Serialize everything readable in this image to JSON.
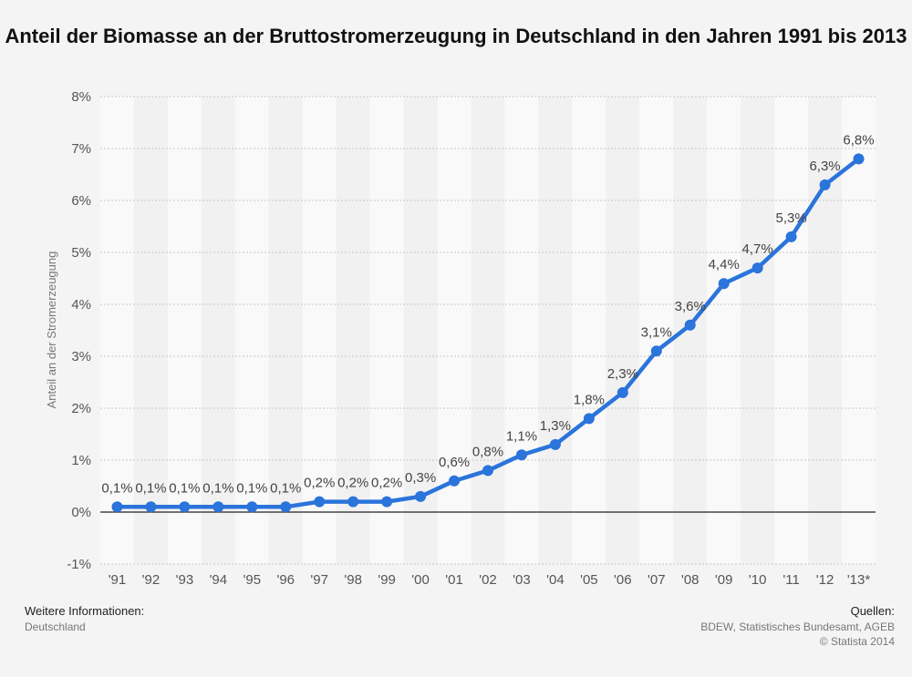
{
  "chart_data": {
    "type": "line",
    "title": "Anteil der Biomasse an der Bruttostromerzeugung in Deutschland in den Jahren 1991 bis 2013",
    "ylabel": "Anteil an der Stromerzeugung",
    "xlabel": "",
    "categories": [
      "'91",
      "'92",
      "'93",
      "'94",
      "'95",
      "'96",
      "'97",
      "'98",
      "'99",
      "'00",
      "'01",
      "'02",
      "'03",
      "'04",
      "'05",
      "'06",
      "'07",
      "'08",
      "'09",
      "'10",
      "'11",
      "'12",
      "'13*"
    ],
    "values": [
      0.1,
      0.1,
      0.1,
      0.1,
      0.1,
      0.1,
      0.2,
      0.2,
      0.2,
      0.3,
      0.6,
      0.8,
      1.1,
      1.3,
      1.8,
      2.3,
      3.1,
      3.6,
      4.4,
      4.7,
      5.3,
      6.3,
      6.8
    ],
    "data_labels": [
      "0,1%",
      "0,1%",
      "0,1%",
      "0,1%",
      "0,1%",
      "0,1%",
      "0,2%",
      "0,2%",
      "0,2%",
      "0,3%",
      "0,6%",
      "0,8%",
      "1,1%",
      "1,3%",
      "1,8%",
      "2,3%",
      "3,1%",
      "3,6%",
      "4,4%",
      "4,7%",
      "5,3%",
      "6,3%",
      "6,8%"
    ],
    "ylim": [
      -1,
      8
    ],
    "yticks": [
      -1,
      0,
      1,
      2,
      3,
      4,
      5,
      6,
      7,
      8
    ],
    "ytick_labels": [
      "-1%",
      "0%",
      "1%",
      "2%",
      "3%",
      "4%",
      "5%",
      "6%",
      "7%",
      "8%"
    ],
    "grid": true,
    "color": "#2a74db"
  },
  "footer": {
    "left_heading": "Weitere Informationen:",
    "left_text": "Deutschland",
    "right_heading": "Quellen:",
    "right_text": "BDEW, Statistisches Bundesamt, AGEB",
    "copyright": "© Statista 2014"
  }
}
